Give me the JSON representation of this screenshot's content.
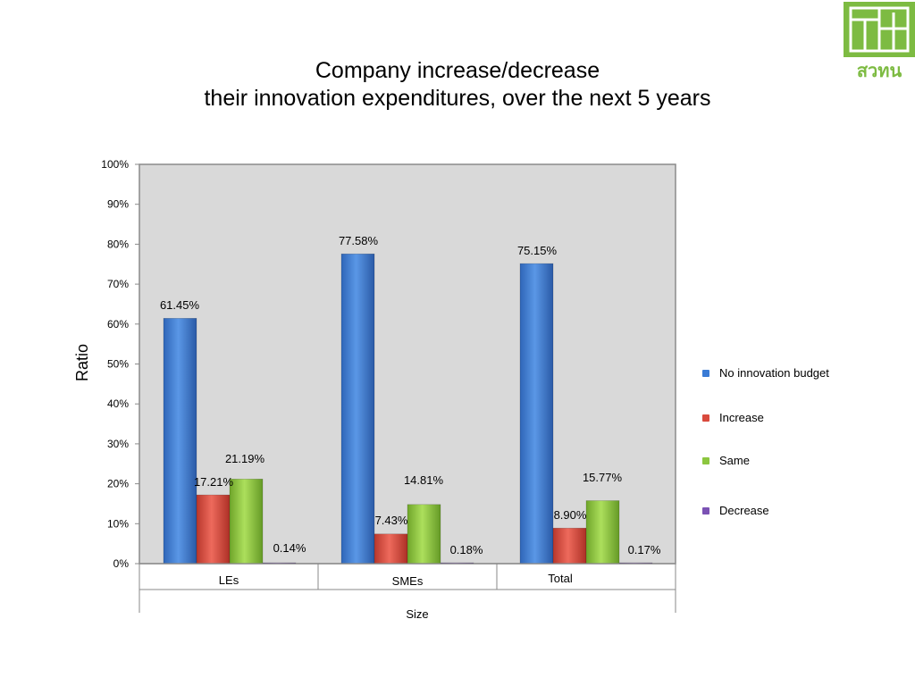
{
  "title_line1": "Company increase/decrease",
  "title_line2": "their innovation expenditures, over the next 5 years",
  "logo_text": "สวทน",
  "colors": {
    "No innovation budget": "#3a7bd5",
    "Increase": "#d94a3d",
    "Same": "#8cc63f",
    "Decrease": "#7b52b4",
    "plot_bg": "#d9d9d9",
    "logo": "#7dbb42"
  },
  "chart_data": {
    "type": "bar",
    "title": "Company increase/decrease their innovation expenditures, over the next 5 years",
    "xlabel": "Size",
    "ylabel": "Ratio",
    "ylim": [
      0,
      100
    ],
    "yticks": [
      "0%",
      "10%",
      "20%",
      "30%",
      "40%",
      "50%",
      "60%",
      "70%",
      "80%",
      "90%",
      "100%"
    ],
    "categories": [
      "LEs",
      "SMEs",
      "Total"
    ],
    "series": [
      {
        "name": "No innovation budget",
        "values": [
          61.45,
          77.58,
          75.15
        ],
        "labels": [
          "61.45%",
          "77.58%",
          "75.15%"
        ]
      },
      {
        "name": "Increase",
        "values": [
          17.21,
          7.43,
          8.9
        ],
        "labels": [
          "17.21%",
          "7.43%",
          "8.90%"
        ]
      },
      {
        "name": "Same",
        "values": [
          21.19,
          14.81,
          15.77
        ],
        "labels": [
          "21.19%",
          "14.81%",
          "15.77%"
        ]
      },
      {
        "name": "Decrease",
        "values": [
          0.14,
          0.18,
          0.17
        ],
        "labels": [
          "0.14%",
          "0.18%",
          "0.17%"
        ]
      }
    ],
    "legend_position": "right",
    "grid": false
  }
}
